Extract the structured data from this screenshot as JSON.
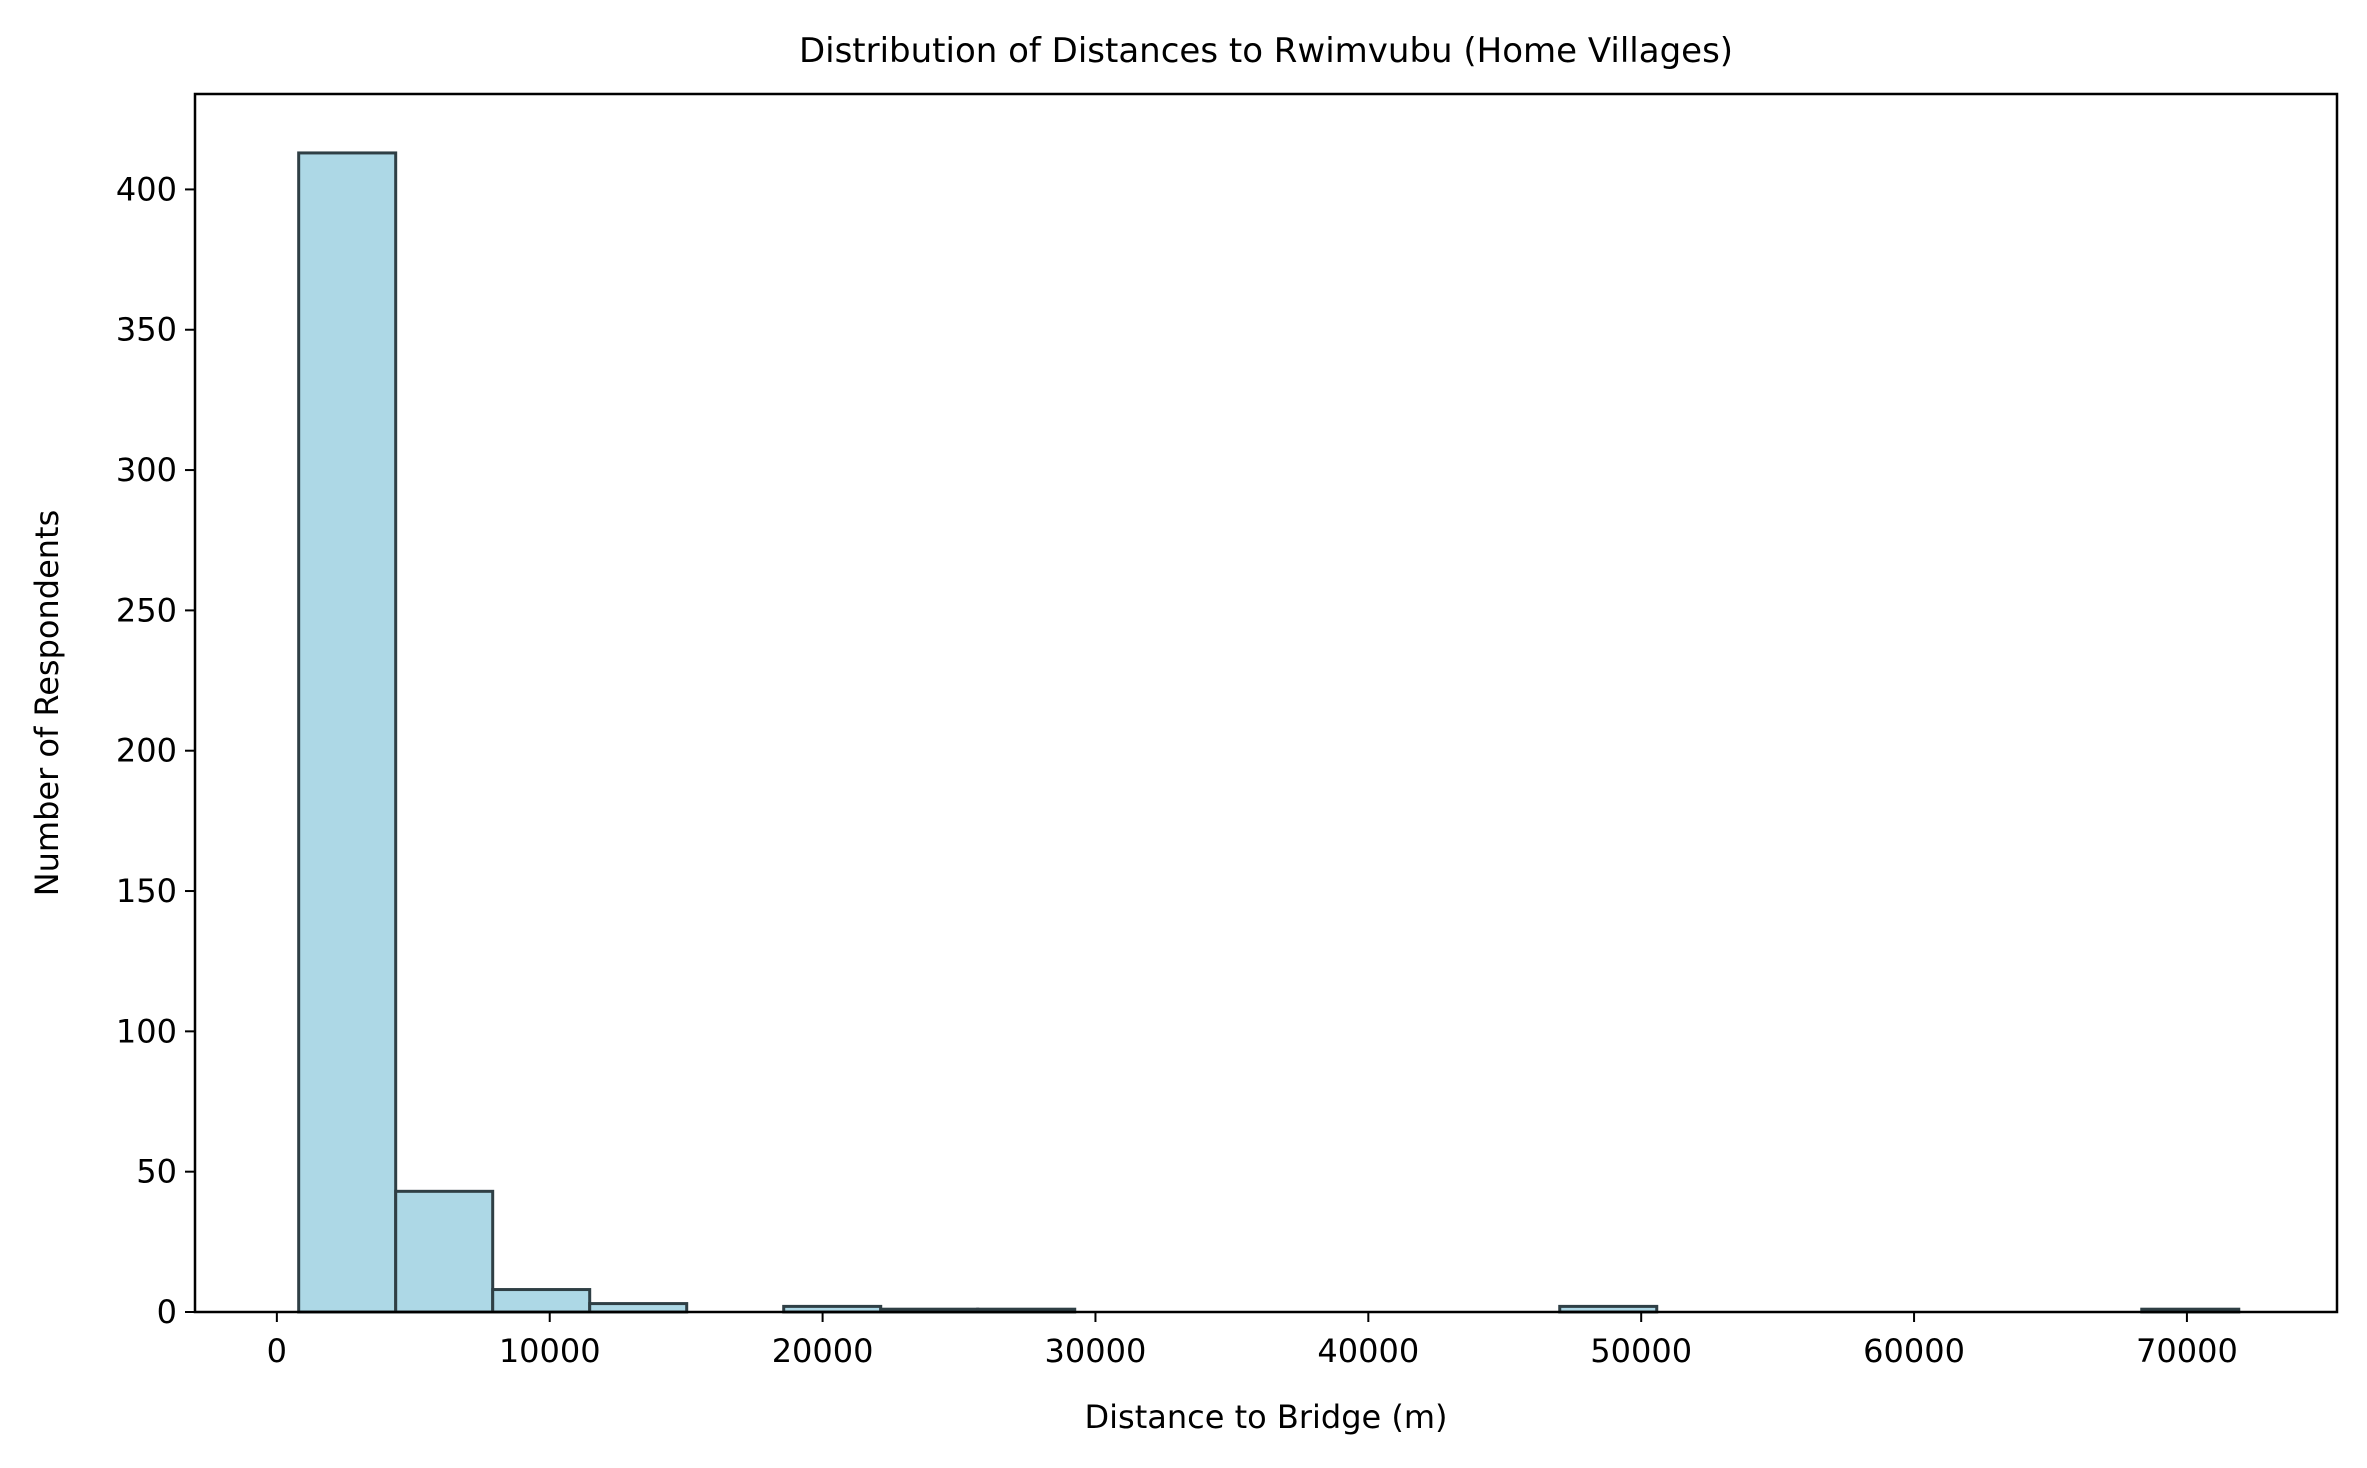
{
  "chart_data": {
    "type": "bar",
    "title": "Distribution of Distances to Rwimvubu (Home Villages)",
    "xlabel": "Distance to Bridge (m)",
    "ylabel": "Number of Respondents",
    "xlim": [
      -3000,
      75500
    ],
    "ylim": [
      0,
      434
    ],
    "xticks": [
      0,
      10000,
      20000,
      30000,
      40000,
      50000,
      60000,
      70000
    ],
    "xtick_labels": [
      "0",
      "10000",
      "20000",
      "30000",
      "40000",
      "50000",
      "60000",
      "70000"
    ],
    "yticks": [
      0,
      50,
      100,
      150,
      200,
      250,
      300,
      350,
      400
    ],
    "ytick_labels": [
      "0",
      "50",
      "100",
      "150",
      "200",
      "250",
      "300",
      "350",
      "400"
    ],
    "bin_edges": [
      800,
      4355,
      7910,
      11465,
      15020,
      18575,
      22130,
      25685,
      29240,
      32795,
      36350,
      39905,
      43460,
      47015,
      50570,
      54125,
      57680,
      61235,
      64790,
      68345,
      71900
    ],
    "counts": [
      413,
      43,
      8,
      3,
      0,
      2,
      1,
      1,
      0,
      0,
      0,
      0,
      0,
      2,
      0,
      0,
      0,
      0,
      0,
      1
    ],
    "bar_color": "#add8e6",
    "edge_color": "#2f3f45",
    "grid": false,
    "legend": "none"
  }
}
